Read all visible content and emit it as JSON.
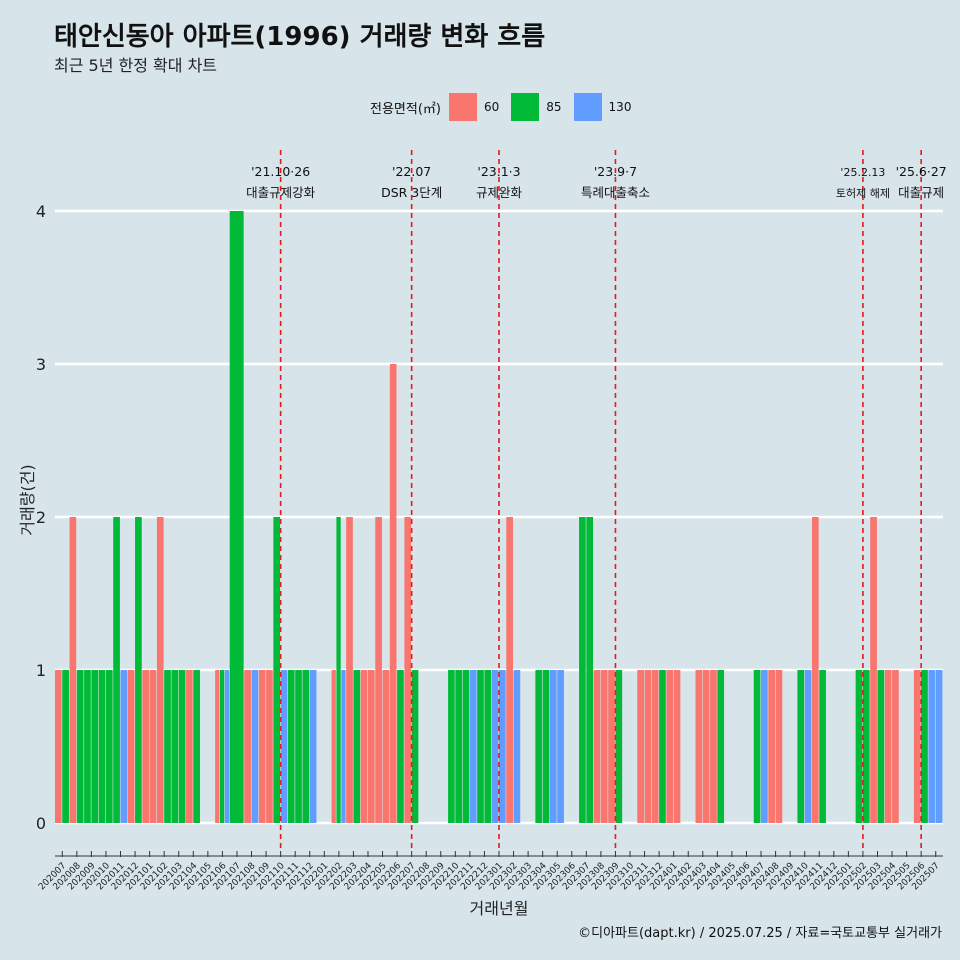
{
  "title": "태안신동아 아파트(1996) 거래량 변화 흐름",
  "subtitle": "최근 5년 한정 확대 차트",
  "caption": "©디아파트(dapt.kr) / 2025.07.25 / 자료=국토교통부 실거래가",
  "legend": {
    "title": "전용면적(㎡)",
    "items": [
      {
        "label": "60",
        "color": "#f8766d"
      },
      {
        "label": "85",
        "color": "#00ba38"
      },
      {
        "label": "130",
        "color": "#619cff"
      }
    ]
  },
  "chart_data": {
    "type": "bar",
    "xlabel": "거래년월",
    "ylabel": "거래량(건)",
    "ylim": [
      0,
      4.4
    ],
    "yticks": [
      0,
      1,
      2,
      3,
      4
    ],
    "grid": true,
    "legend_position": "top",
    "categories": [
      "202007",
      "202008",
      "202009",
      "202010",
      "202011",
      "202012",
      "202101",
      "202102",
      "202103",
      "202104",
      "202105",
      "202106",
      "202107",
      "202108",
      "202109",
      "202110",
      "202111",
      "202112",
      "202201",
      "202202",
      "202203",
      "202204",
      "202205",
      "202206",
      "202207",
      "202208",
      "202209",
      "202210",
      "202211",
      "202212",
      "202301",
      "202302",
      "202303",
      "202304",
      "202305",
      "202306",
      "202307",
      "202308",
      "202309",
      "202310",
      "202311",
      "202312",
      "202401",
      "202402",
      "202403",
      "202404",
      "202405",
      "202406",
      "202407",
      "202408",
      "202409",
      "202410",
      "202411",
      "202412",
      "202501",
      "202502",
      "202503",
      "202504",
      "202505",
      "202506",
      "202507"
    ],
    "transactions": [
      {
        "month": "202007",
        "size": "60",
        "count": 1
      },
      {
        "month": "202007",
        "size": "85",
        "count": 1
      },
      {
        "month": "202008",
        "size": "60",
        "count": 2
      },
      {
        "month": "202008",
        "size": "85",
        "count": 1
      },
      {
        "month": "202009",
        "size": "85",
        "count": 1
      },
      {
        "month": "202009",
        "size": "85",
        "count": 1
      },
      {
        "month": "202010",
        "size": "85",
        "count": 1
      },
      {
        "month": "202010",
        "size": "85",
        "count": 1
      },
      {
        "month": "202011",
        "size": "85",
        "count": 2
      },
      {
        "month": "202011",
        "size": "130",
        "count": 1
      },
      {
        "month": "202012",
        "size": "60",
        "count": 1
      },
      {
        "month": "202012",
        "size": "85",
        "count": 2
      },
      {
        "month": "202101",
        "size": "60",
        "count": 1
      },
      {
        "month": "202101",
        "size": "60",
        "count": 1
      },
      {
        "month": "202102",
        "size": "60",
        "count": 2
      },
      {
        "month": "202102",
        "size": "85",
        "count": 1
      },
      {
        "month": "202103",
        "size": "85",
        "count": 1
      },
      {
        "month": "202103",
        "size": "85",
        "count": 1
      },
      {
        "month": "202104",
        "size": "60",
        "count": 1
      },
      {
        "month": "202104",
        "size": "85",
        "count": 1
      },
      {
        "month": "202106",
        "size": "60",
        "count": 1
      },
      {
        "month": "202106",
        "size": "85",
        "count": 1
      },
      {
        "month": "202106",
        "size": "130",
        "count": 1
      },
      {
        "month": "202107",
        "size": "85",
        "count": 4
      },
      {
        "month": "202108",
        "size": "60",
        "count": 1
      },
      {
        "month": "202108",
        "size": "130",
        "count": 1
      },
      {
        "month": "202109",
        "size": "60",
        "count": 1
      },
      {
        "month": "202109",
        "size": "60",
        "count": 1
      },
      {
        "month": "202110",
        "size": "85",
        "count": 2
      },
      {
        "month": "202110",
        "size": "130",
        "count": 1
      },
      {
        "month": "202111",
        "size": "85",
        "count": 1
      },
      {
        "month": "202111",
        "size": "85",
        "count": 1
      },
      {
        "month": "202112",
        "size": "85",
        "count": 1
      },
      {
        "month": "202112",
        "size": "130",
        "count": 1
      },
      {
        "month": "202202",
        "size": "60",
        "count": 1
      },
      {
        "month": "202202",
        "size": "85",
        "count": 2
      },
      {
        "month": "202202",
        "size": "130",
        "count": 1
      },
      {
        "month": "202203",
        "size": "60",
        "count": 2
      },
      {
        "month": "202203",
        "size": "85",
        "count": 1
      },
      {
        "month": "202204",
        "size": "60",
        "count": 1
      },
      {
        "month": "202204",
        "size": "60",
        "count": 1
      },
      {
        "month": "202205",
        "size": "60",
        "count": 2
      },
      {
        "month": "202205",
        "size": "60",
        "count": 1
      },
      {
        "month": "202206",
        "size": "60",
        "count": 3
      },
      {
        "month": "202206",
        "size": "85",
        "count": 1
      },
      {
        "month": "202207",
        "size": "60",
        "count": 2
      },
      {
        "month": "202207",
        "size": "85",
        "count": 1
      },
      {
        "month": "202210",
        "size": "85",
        "count": 1
      },
      {
        "month": "202210",
        "size": "85",
        "count": 1
      },
      {
        "month": "202211",
        "size": "85",
        "count": 1
      },
      {
        "month": "202211",
        "size": "130",
        "count": 1
      },
      {
        "month": "202212",
        "size": "85",
        "count": 1
      },
      {
        "month": "202212",
        "size": "85",
        "count": 1
      },
      {
        "month": "202301",
        "size": "130",
        "count": 1
      },
      {
        "month": "202301",
        "size": "130",
        "count": 1
      },
      {
        "month": "202302",
        "size": "60",
        "count": 2
      },
      {
        "month": "202302",
        "size": "130",
        "count": 1
      },
      {
        "month": "202304",
        "size": "85",
        "count": 1
      },
      {
        "month": "202304",
        "size": "85",
        "count": 1
      },
      {
        "month": "202305",
        "size": "130",
        "count": 1
      },
      {
        "month": "202305",
        "size": "130",
        "count": 1
      },
      {
        "month": "202307",
        "size": "85",
        "count": 2
      },
      {
        "month": "202307",
        "size": "85",
        "count": 2
      },
      {
        "month": "202308",
        "size": "60",
        "count": 1
      },
      {
        "month": "202308",
        "size": "60",
        "count": 1
      },
      {
        "month": "202309",
        "size": "60",
        "count": 1
      },
      {
        "month": "202309",
        "size": "85",
        "count": 1
      },
      {
        "month": "202311",
        "size": "60",
        "count": 1
      },
      {
        "month": "202311",
        "size": "60",
        "count": 1
      },
      {
        "month": "202312",
        "size": "60",
        "count": 1
      },
      {
        "month": "202312",
        "size": "85",
        "count": 1
      },
      {
        "month": "202401",
        "size": "60",
        "count": 1
      },
      {
        "month": "202401",
        "size": "60",
        "count": 1
      },
      {
        "month": "202403",
        "size": "60",
        "count": 1
      },
      {
        "month": "202403",
        "size": "60",
        "count": 1
      },
      {
        "month": "202404",
        "size": "60",
        "count": 1
      },
      {
        "month": "202404",
        "size": "85",
        "count": 1
      },
      {
        "month": "202407",
        "size": "85",
        "count": 1
      },
      {
        "month": "202407",
        "size": "130",
        "count": 1
      },
      {
        "month": "202408",
        "size": "60",
        "count": 1
      },
      {
        "month": "202408",
        "size": "60",
        "count": 1
      },
      {
        "month": "202410",
        "size": "85",
        "count": 1
      },
      {
        "month": "202410",
        "size": "130",
        "count": 1
      },
      {
        "month": "202411",
        "size": "60",
        "count": 2
      },
      {
        "month": "202411",
        "size": "85",
        "count": 1
      },
      {
        "month": "202502",
        "size": "85",
        "count": 1
      },
      {
        "month": "202502",
        "size": "85",
        "count": 1
      },
      {
        "month": "202503",
        "size": "60",
        "count": 2
      },
      {
        "month": "202503",
        "size": "85",
        "count": 1
      },
      {
        "month": "202504",
        "size": "60",
        "count": 1
      },
      {
        "month": "202504",
        "size": "60",
        "count": 1
      },
      {
        "month": "202506",
        "size": "60",
        "count": 1
      },
      {
        "month": "202506",
        "size": "85",
        "count": 1
      },
      {
        "month": "202507",
        "size": "130",
        "count": 1
      },
      {
        "month": "202507",
        "size": "130",
        "count": 1
      }
    ],
    "events": [
      {
        "month": "202110",
        "date": "'21.10·26",
        "label": "대출규제강화"
      },
      {
        "month": "202207",
        "date": "'22.07",
        "label": "DSR 3단계"
      },
      {
        "month": "202301",
        "date": "'23.1·3",
        "label": "규제완화"
      },
      {
        "month": "202309",
        "date": "'23.9·7",
        "label": "특례대출축소"
      },
      {
        "month": "202502",
        "date": "'25.2.13",
        "label": "토허제 해제"
      },
      {
        "month": "202506",
        "date": "'25.6·27",
        "label": "대출규제"
      }
    ]
  }
}
